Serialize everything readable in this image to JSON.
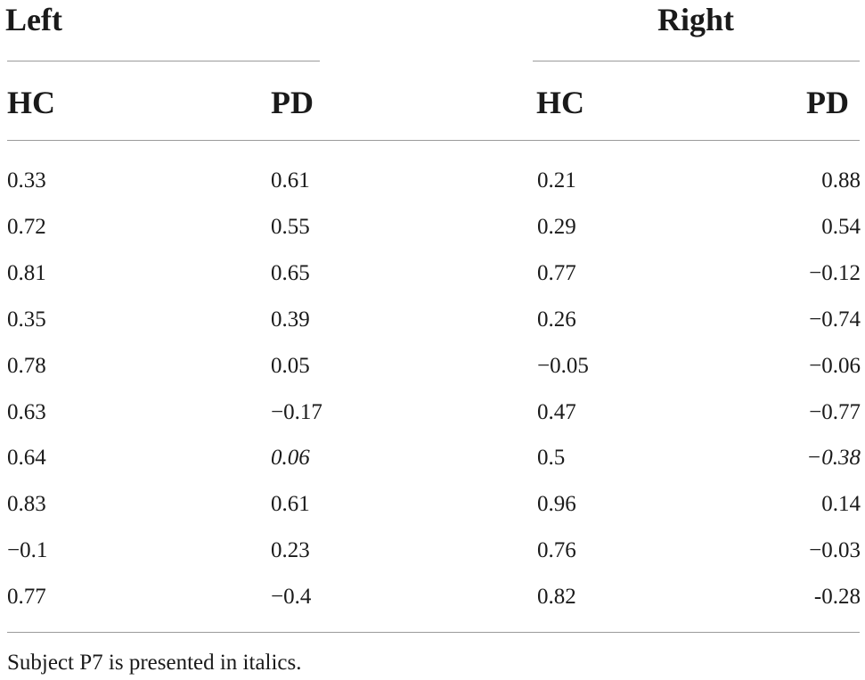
{
  "table": {
    "groups": [
      {
        "label": "Left"
      },
      {
        "label": "Right"
      }
    ],
    "columns": [
      "HC",
      "PD",
      "HC",
      "PD"
    ],
    "rows": [
      [
        {
          "text": "0.33"
        },
        {
          "text": "0.61"
        },
        {
          "text": "0.21"
        },
        {
          "text": "0.88"
        }
      ],
      [
        {
          "text": "0.72"
        },
        {
          "text": "0.55"
        },
        {
          "text": "0.29"
        },
        {
          "text": "0.54"
        }
      ],
      [
        {
          "text": "0.81"
        },
        {
          "text": "0.65"
        },
        {
          "text": "0.77"
        },
        {
          "text": "−0.12"
        }
      ],
      [
        {
          "text": "0.35"
        },
        {
          "text": "0.39"
        },
        {
          "text": "0.26"
        },
        {
          "text": "−0.74"
        }
      ],
      [
        {
          "text": "0.78"
        },
        {
          "text": "0.05"
        },
        {
          "text": "−0.05"
        },
        {
          "text": "−0.06"
        }
      ],
      [
        {
          "text": "0.63"
        },
        {
          "text": "−0.17"
        },
        {
          "text": "0.47"
        },
        {
          "text": "−0.77"
        }
      ],
      [
        {
          "text": "0.64"
        },
        {
          "text": "0.06",
          "italic": true
        },
        {
          "text": "0.5"
        },
        {
          "text": "−0.38",
          "italic": true
        }
      ],
      [
        {
          "text": "0.83"
        },
        {
          "text": "0.61"
        },
        {
          "text": "0.96"
        },
        {
          "text": "0.14"
        }
      ],
      [
        {
          "text": "−0.1"
        },
        {
          "text": "0.23"
        },
        {
          "text": "0.76"
        },
        {
          "text": "−0.03"
        }
      ],
      [
        {
          "text": "0.77"
        },
        {
          "text": "−0.4"
        },
        {
          "text": "0.82"
        },
        {
          "text": "-0.28"
        }
      ]
    ],
    "footnote": "Subject P7 is presented in italics."
  }
}
